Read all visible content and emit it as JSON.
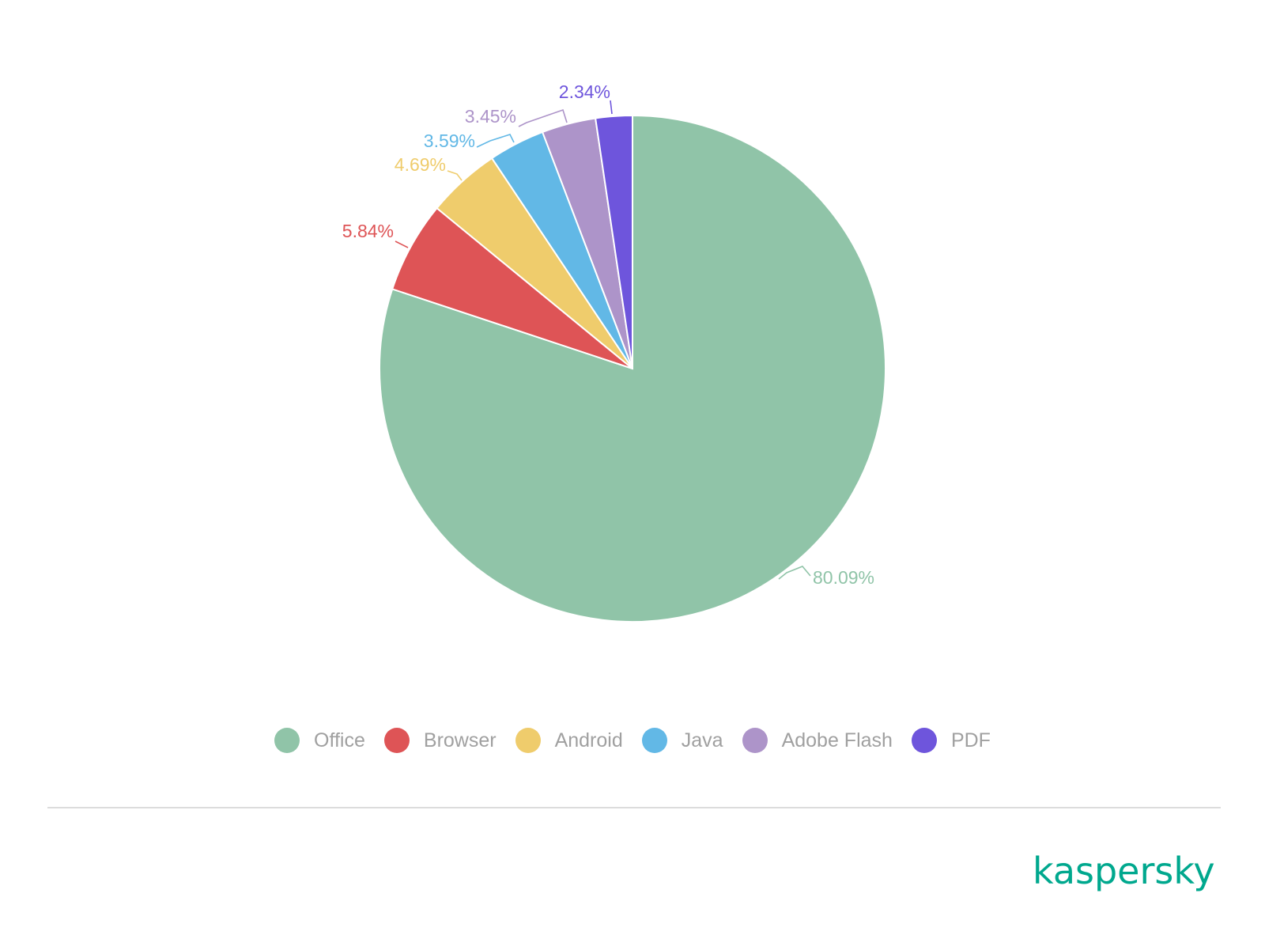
{
  "chart_data": {
    "type": "pie",
    "title": "",
    "slices": [
      {
        "label": "Office",
        "value": 80.09,
        "display": "80.09%",
        "color": "#90c4a8"
      },
      {
        "label": "Browser",
        "value": 5.84,
        "display": "5.84%",
        "color": "#de5456"
      },
      {
        "label": "Android",
        "value": 4.69,
        "display": "4.69%",
        "color": "#efcc6c"
      },
      {
        "label": "Java",
        "value": 3.59,
        "display": "3.59%",
        "color": "#62b8e6"
      },
      {
        "label": "Adobe Flash",
        "value": 3.45,
        "display": "3.45%",
        "color": "#ad94c9"
      },
      {
        "label": "PDF",
        "value": 2.34,
        "display": "2.34%",
        "color": "#6e55dc"
      }
    ],
    "start": "12 o'clock",
    "direction": "clockwise",
    "legend_placement": "bottom"
  },
  "brand": {
    "logo_text": "kaspersky",
    "color": "#00a88e"
  }
}
